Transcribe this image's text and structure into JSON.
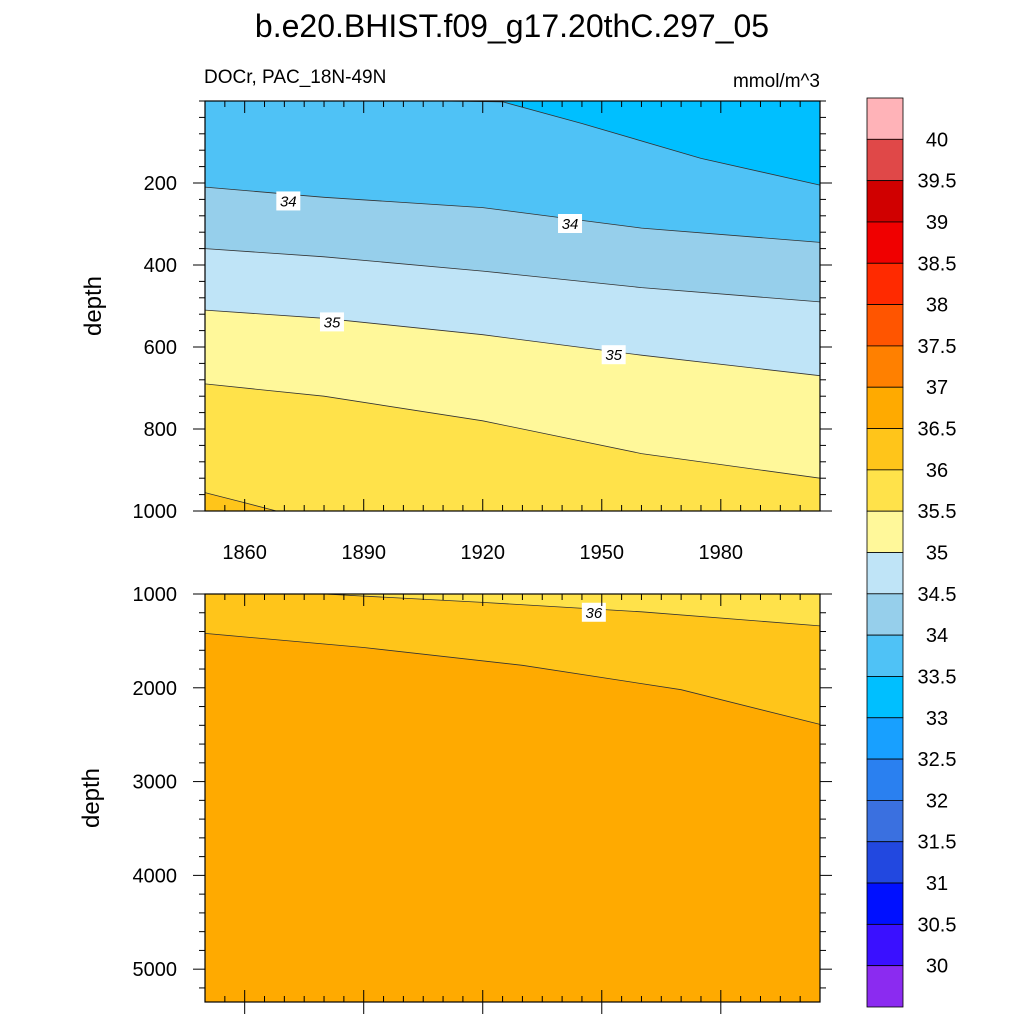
{
  "chart_data": [
    {
      "type": "contour",
      "panel": "upper",
      "title": "b.e20.BHIST.f09_g17.20thC.297_05",
      "left_subtitle": "DOCr, PAC_18N-49N",
      "right_subtitle": "mmol/m^3",
      "ylabel": "depth",
      "xlim": [
        1850,
        2005
      ],
      "ylim": [
        0,
        1000
      ],
      "y_reversed": true,
      "x_ticks": [
        "1860",
        "1890",
        "1920",
        "1950",
        "1980"
      ],
      "y_ticks": [
        "200",
        "400",
        "600",
        "800",
        "1000"
      ],
      "boundaries": [
        {
          "level": 33.5,
          "points": [
            [
              1850,
              0
            ],
            [
              1910,
              0
            ],
            [
              1925,
              2
            ],
            [
              1945,
              55
            ],
            [
              1975,
              140
            ],
            [
              2005,
              205
            ]
          ]
        },
        {
          "level": 34.0,
          "points": [
            [
              1850,
              210
            ],
            [
              1880,
              235
            ],
            [
              1920,
              260
            ],
            [
              1960,
              310
            ],
            [
              2005,
              345
            ]
          ]
        },
        {
          "level": 34.5,
          "points": [
            [
              1850,
              360
            ],
            [
              1880,
              380
            ],
            [
              1920,
              415
            ],
            [
              1960,
              455
            ],
            [
              2005,
              490
            ]
          ]
        },
        {
          "level": 35.0,
          "points": [
            [
              1850,
              510
            ],
            [
              1880,
              530
            ],
            [
              1920,
              570
            ],
            [
              1960,
              620
            ],
            [
              2005,
              670
            ]
          ]
        },
        {
          "level": 35.5,
          "points": [
            [
              1850,
              690
            ],
            [
              1880,
              720
            ],
            [
              1920,
              780
            ],
            [
              1960,
              860
            ],
            [
              2005,
              920
            ]
          ]
        },
        {
          "level": 36.0,
          "points": [
            [
              1850,
              955
            ],
            [
              1860,
              980
            ],
            [
              1868,
              1000
            ],
            [
              2005,
              1000
            ]
          ]
        }
      ],
      "bands": [
        "33",
        "33.5",
        "34",
        "34.5",
        "35",
        "35.5",
        "36"
      ],
      "contour_labels": [
        {
          "text": "34",
          "x": 1871,
          "y": 245
        },
        {
          "text": "34",
          "x": 1942,
          "y": 300
        },
        {
          "text": "35",
          "x": 1882,
          "y": 540
        },
        {
          "text": "35",
          "x": 1953,
          "y": 620
        }
      ]
    },
    {
      "type": "contour",
      "panel": "lower",
      "ylabel": "depth",
      "xlim": [
        1850,
        2005
      ],
      "ylim": [
        1000,
        5350
      ],
      "y_reversed": true,
      "y_ticks": [
        "1000",
        "2000",
        "3000",
        "4000",
        "5000"
      ],
      "boundaries": [
        {
          "level": 36.0,
          "points": [
            [
              1850,
              1000
            ],
            [
              1880,
              1000
            ],
            [
              1920,
              1090
            ],
            [
              1960,
              1190
            ],
            [
              2005,
              1340
            ]
          ]
        },
        {
          "level": 36.5,
          "points": [
            [
              1850,
              1420
            ],
            [
              1890,
              1570
            ],
            [
              1930,
              1760
            ],
            [
              1970,
              2020
            ],
            [
              2005,
              2390
            ]
          ]
        }
      ],
      "bands": [
        "35.5",
        "36",
        "36.5"
      ],
      "contour_labels": [
        {
          "text": "36",
          "x": 1948,
          "y": 1200
        }
      ]
    }
  ],
  "colorbar": {
    "labels": [
      "40",
      "39.5",
      "39",
      "38.5",
      "38",
      "37.5",
      "37",
      "36.5",
      "36",
      "35.5",
      "35",
      "34.5",
      "34",
      "33.5",
      "33",
      "32.5",
      "32",
      "31.5",
      "31",
      "30.5",
      "30"
    ],
    "colors": [
      "#FFB3B8",
      "#E04848",
      "#D00000",
      "#F00000",
      "#FF2A00",
      "#FF5500",
      "#FF8000",
      "#FFAA00",
      "#FFC51A",
      "#FFE24A",
      "#FFF89A",
      "#BFE4F7",
      "#96CFEB",
      "#4FC2F6",
      "#00BFFF",
      "#18A0FF",
      "#2A80F0",
      "#3A70E0",
      "#2248E0",
      "#0010FF",
      "#3A10FF",
      "#8B2BF0"
    ]
  },
  "band_colors": {
    "33": "#00BFFF",
    "33.5": "#4FC2F6",
    "34": "#96CFEB",
    "34.5": "#BFE4F7",
    "35": "#FFF89A",
    "35.5": "#FFE24A",
    "36": "#FFC51A",
    "36.5": "#FFAA00"
  }
}
